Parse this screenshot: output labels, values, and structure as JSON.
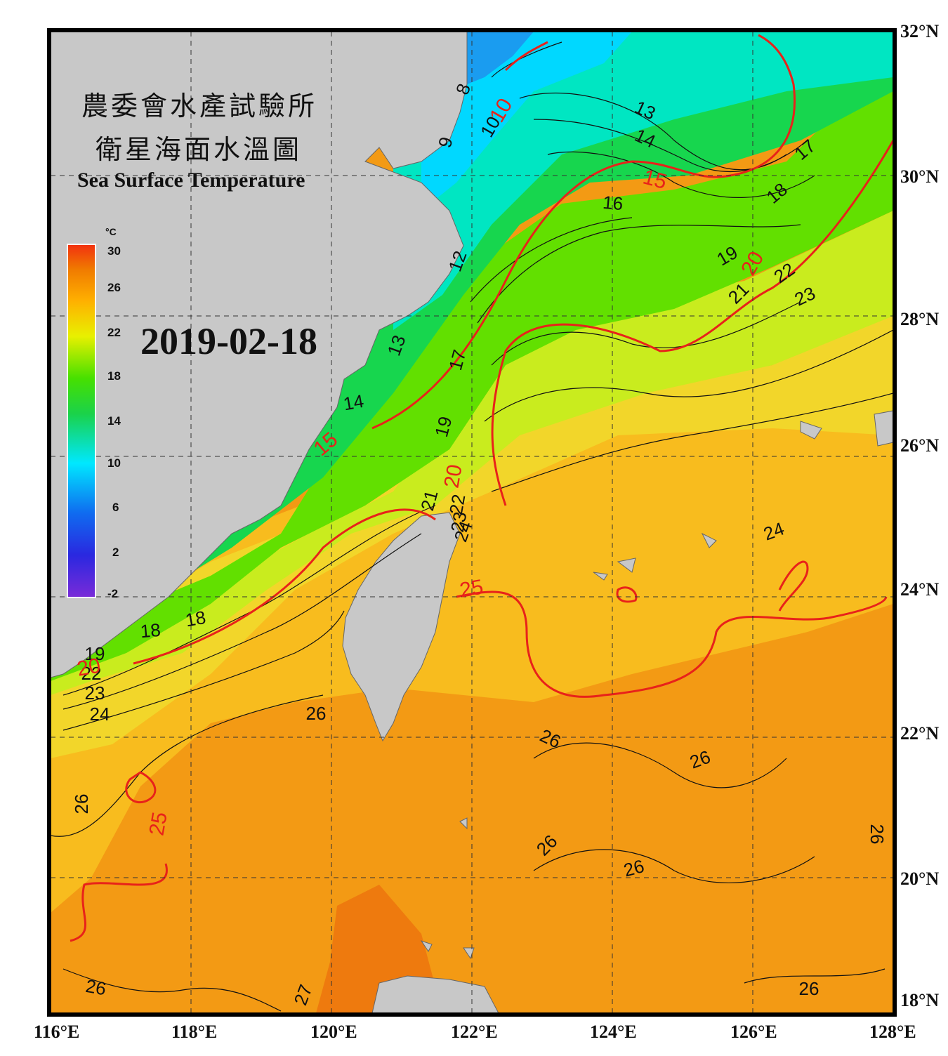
{
  "title": {
    "org_cn": "農委會水產試驗所",
    "chart_cn": "衛星海面水溫圖",
    "chart_en": "Sea Surface Temperature"
  },
  "date": "2019-02-18",
  "colorbar": {
    "unit": "°C",
    "ticks": [
      "30",
      "26",
      "22",
      "18",
      "14",
      "10",
      "6",
      "2",
      "-2"
    ],
    "colors": [
      "#7a2bd8",
      "#2a28e0",
      "#0f6cf0",
      "#00e8ff",
      "#1ad24a",
      "#46e000",
      "#e8f000",
      "#ffb000",
      "#f07a00",
      "#f23010"
    ]
  },
  "axes": {
    "lon_labels": [
      "116°E",
      "118°E",
      "120°E",
      "122°E",
      "124°E",
      "126°E",
      "128°E"
    ],
    "lat_labels": [
      "32°N",
      "30°N",
      "28°N",
      "26°N",
      "24°N",
      "22°N",
      "20°N",
      "18°N"
    ]
  },
  "contour_labels": {
    "black": [
      "8",
      "9",
      "10",
      "12",
      "13",
      "13",
      "14",
      "14",
      "16",
      "17",
      "17",
      "18",
      "18",
      "18",
      "19",
      "19",
      "19",
      "21",
      "21",
      "22",
      "22",
      "22",
      "23",
      "23",
      "23",
      "24",
      "24",
      "24",
      "26",
      "26",
      "26",
      "26",
      "26",
      "26",
      "26",
      "26",
      "26",
      "27"
    ],
    "red": [
      "10",
      "15",
      "15",
      "20",
      "20",
      "20",
      "25",
      "25"
    ]
  },
  "colors": {
    "land": "#c8c8c8",
    "frame": "#000000",
    "isotherm_major": "#e8221a",
    "isotherm_minor": "#111111",
    "grid": "#333333"
  }
}
